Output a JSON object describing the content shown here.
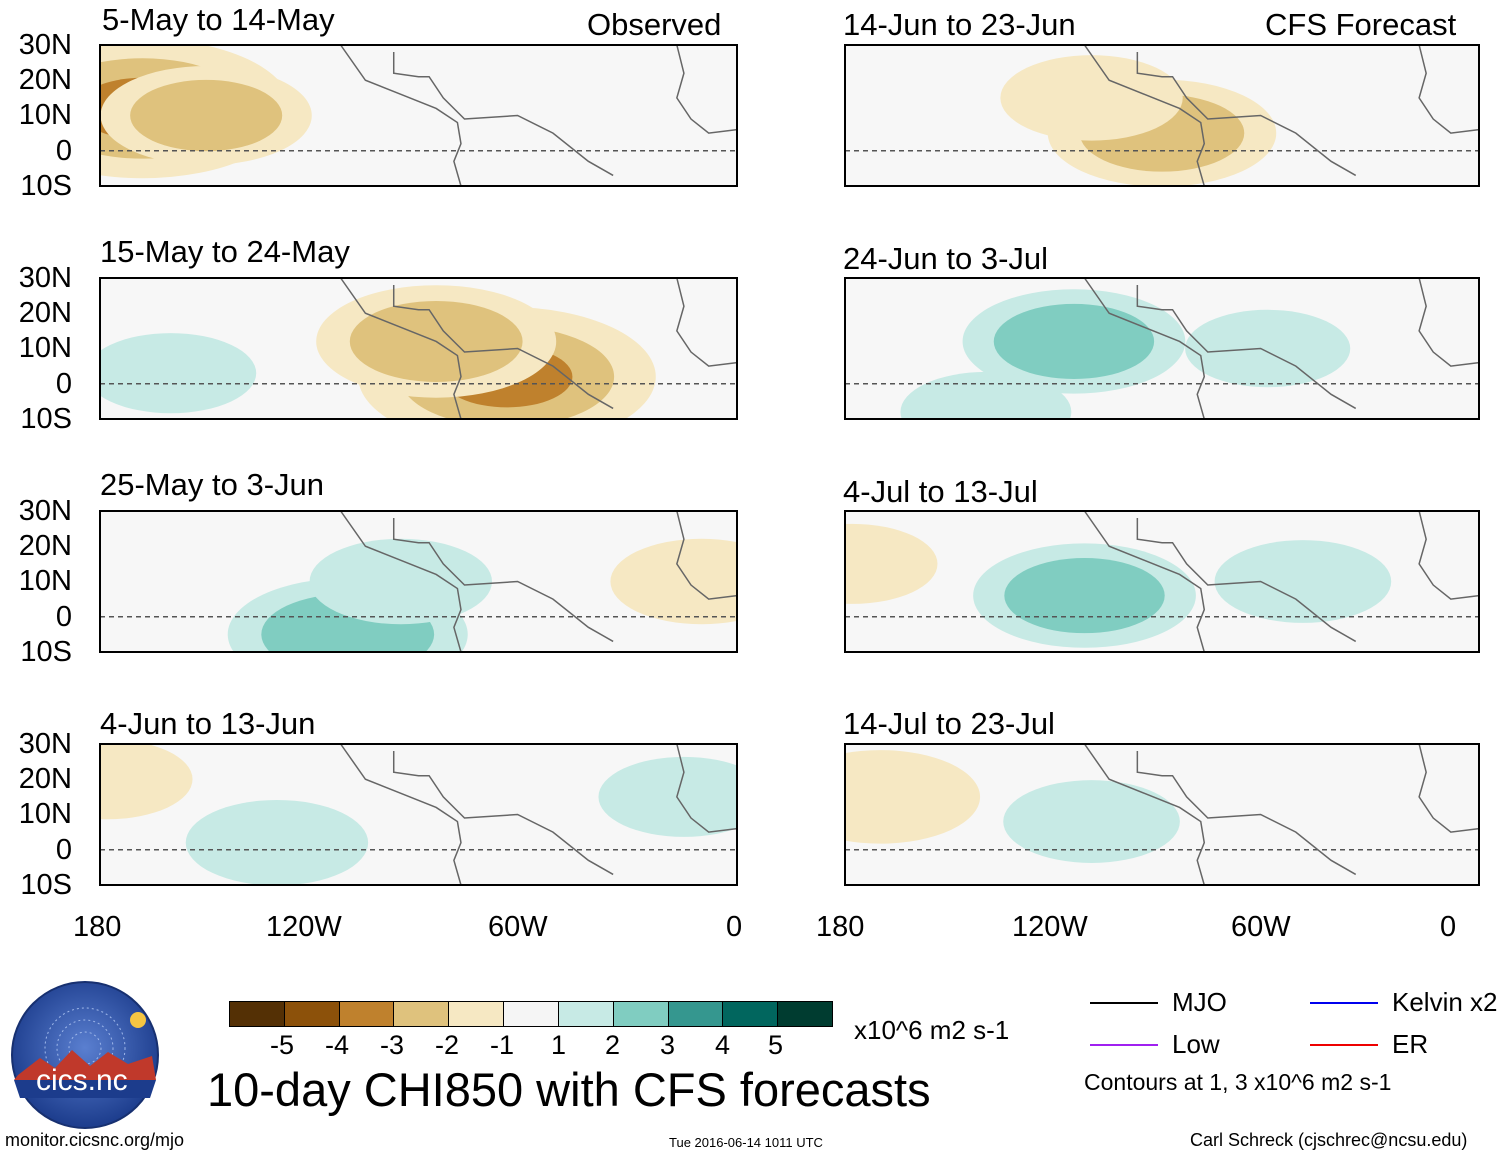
{
  "header": {
    "observed_label": "Observed",
    "forecast_label": "CFS Forecast"
  },
  "chart_data": {
    "type": "heatmap",
    "title": "10-day CHI850 with CFS forecasts",
    "variable": "CHI850",
    "units": "x10^6 m2 s-1",
    "lon_ticks": [
      "180",
      "120W",
      "60W",
      "0"
    ],
    "lat_ticks": [
      "30N",
      "20N",
      "10N",
      "0",
      "10S"
    ],
    "lon_range": [
      -180,
      0
    ],
    "lat_range": [
      -10,
      30
    ],
    "panels": [
      {
        "title": "5-May to 14-May",
        "column": "Observed",
        "mjo_contour": "positive near 20W",
        "anomalies": [
          {
            "lon": -168,
            "lat": 12,
            "value": -3.5
          },
          {
            "lon": -150,
            "lat": 10,
            "value": -2
          }
        ]
      },
      {
        "title": "15-May to 24-May",
        "column": "Observed",
        "mjo_contour": "around 175W",
        "anomalies": [
          {
            "lon": -65,
            "lat": 2,
            "value": -3.5
          },
          {
            "lon": -85,
            "lat": 12,
            "value": -2.5
          },
          {
            "lon": -160,
            "lat": 3,
            "value": 1.3
          }
        ]
      },
      {
        "title": "25-May to 3-Jun",
        "column": "Observed",
        "mjo_contour": "near 95W",
        "anomalies": [
          {
            "lon": -110,
            "lat": -5,
            "value": 2.5
          },
          {
            "lon": -95,
            "lat": 10,
            "value": 1.5
          },
          {
            "lon": -10,
            "lat": 10,
            "value": -1.5
          }
        ]
      },
      {
        "title": "4-Jun to 13-Jun",
        "column": "Observed",
        "mjo_contour": "near 80W",
        "anomalies": [
          {
            "lon": -130,
            "lat": 2,
            "value": 1.5
          },
          {
            "lon": -15,
            "lat": 15,
            "value": 1.3
          },
          {
            "lon": -178,
            "lat": 20,
            "value": -1.3
          }
        ]
      },
      {
        "title": "14-Jun to 23-Jun",
        "column": "CFS Forecast",
        "mjo_contour": "",
        "anomalies": [
          {
            "lon": -90,
            "lat": 5,
            "value": -2.3
          },
          {
            "lon": -110,
            "lat": 15,
            "value": -1.5
          }
        ]
      },
      {
        "title": "24-Jun to 3-Jul",
        "column": "CFS Forecast",
        "mjo_contour": "around 120W",
        "anomalies": [
          {
            "lon": -115,
            "lat": 12,
            "value": 2.2
          },
          {
            "lon": -140,
            "lat": -8,
            "value": 1.3
          },
          {
            "lon": -60,
            "lat": 10,
            "value": 1.2
          }
        ]
      },
      {
        "title": "4-Jul to 13-Jul",
        "column": "CFS Forecast",
        "mjo_contour": "near 110W",
        "anomalies": [
          {
            "lon": -112,
            "lat": 6,
            "value": 2.2
          },
          {
            "lon": -50,
            "lat": 10,
            "value": 1.4
          },
          {
            "lon": -178,
            "lat": 15,
            "value": -1.3
          }
        ]
      },
      {
        "title": "14-Jul to 23-Jul",
        "column": "CFS Forecast",
        "mjo_contour": "",
        "anomalies": [
          {
            "lon": -110,
            "lat": 8,
            "value": 1.4
          },
          {
            "lon": -170,
            "lat": 15,
            "value": -1.8
          }
        ]
      }
    ],
    "colorbar": {
      "ticks": [
        "-5",
        "-4",
        "-3",
        "-2",
        "-1",
        "1",
        "2",
        "3",
        "4",
        "5"
      ],
      "colors": [
        "#543005",
        "#8c510a",
        "#bf812d",
        "#dfc27d",
        "#f6e8c3",
        "#f5f5f5",
        "#c7eae5",
        "#80cdc1",
        "#35978f",
        "#01665e",
        "#003c30"
      ],
      "units_label": "x10^6 m2 s-1"
    },
    "legend": [
      {
        "label": "MJO",
        "color": "#000000"
      },
      {
        "label": "Kelvin x2",
        "color": "#0000ee"
      },
      {
        "label": "Low",
        "color": "#a020f0"
      },
      {
        "label": "ER",
        "color": "#ee0000"
      }
    ],
    "contours_note": "Contours at 1, 3 x10^6 m2 s-1"
  },
  "logo": {
    "text": "cics.nc",
    "ring_text": "Cooperative Institute for Climate and Satellites"
  },
  "footer": {
    "site": "monitor.cicsnc.org/mjo",
    "timestamp": "Tue 2016-06-14 1011 UTC",
    "author": "Carl Schreck (cjschrec@ncsu.edu)"
  }
}
